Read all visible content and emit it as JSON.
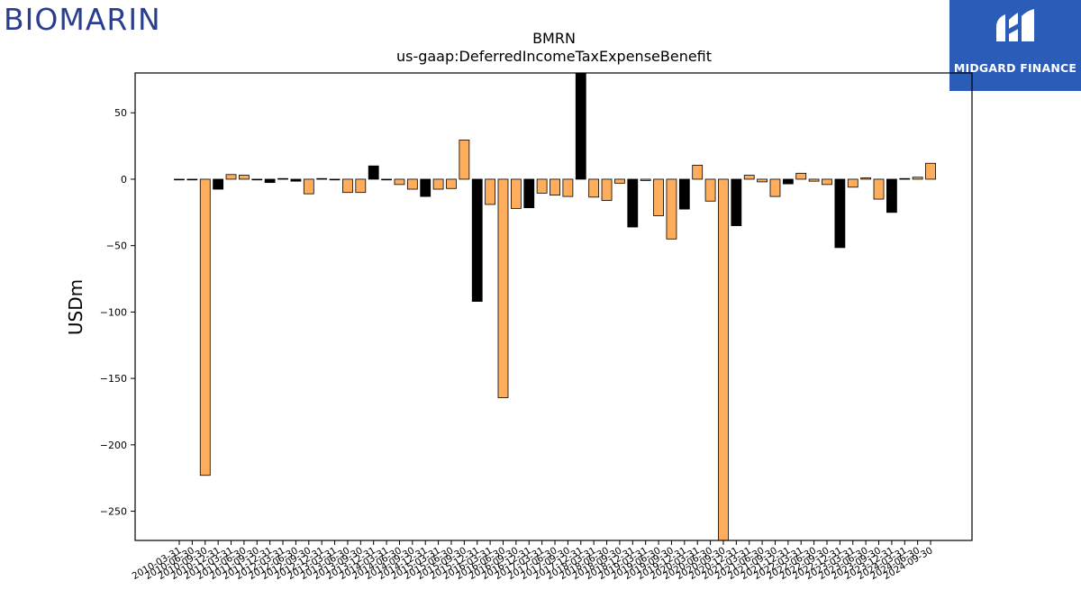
{
  "logos": {
    "left_brand": "BIOMARIN",
    "right_brand": "MIDGARD FINANCE"
  },
  "colors": {
    "bar_a": "#fdad5c",
    "bar_b": "#000000",
    "logo_left": "#2a3e8f",
    "logo_right_bg": "#2b5cb8"
  },
  "chart_data": {
    "type": "bar",
    "title": "BMRN",
    "subtitle": "us-gaap:DeferredIncomeTaxExpenseBenefit",
    "xlabel": "",
    "ylabel": "USDm",
    "ylim": [
      -272,
      80
    ],
    "yticks": [
      50,
      0,
      -50,
      -100,
      -150,
      -200,
      -250
    ],
    "ytick_labels": [
      "50",
      "0",
      "−50",
      "−100",
      "−150",
      "−200",
      "−250"
    ],
    "grid": false,
    "categories": [
      "2010-03-31",
      "2010-06-30",
      "2010-09-30",
      "2010-12-31",
      "2011-03-31",
      "2011-06-30",
      "2011-09-30",
      "2011-12-31",
      "2012-03-31",
      "2012-06-30",
      "2012-09-30",
      "2012-12-31",
      "2013-03-31",
      "2013-06-30",
      "2013-09-30",
      "2013-12-31",
      "2014-03-31",
      "2014-06-30",
      "2014-09-30",
      "2014-12-31",
      "2015-03-31",
      "2015-06-30",
      "2015-09-30",
      "2015-12-31",
      "2016-03-31",
      "2016-06-30",
      "2016-09-30",
      "2016-12-31",
      "2017-03-31",
      "2017-06-30",
      "2017-09-30",
      "2017-12-31",
      "2018-03-31",
      "2018-06-30",
      "2018-09-30",
      "2018-12-31",
      "2019-03-31",
      "2019-06-30",
      "2019-09-30",
      "2019-12-31",
      "2020-03-31",
      "2020-06-30",
      "2020-09-30",
      "2020-12-31",
      "2021-03-31",
      "2021-06-30",
      "2021-09-30",
      "2021-12-31",
      "2022-03-31",
      "2022-06-30",
      "2022-09-30",
      "2022-12-31",
      "2023-03-31",
      "2023-06-30",
      "2023-09-30",
      "2023-12-31",
      "2024-03-31",
      "2024-06-30",
      "2024-09-30"
    ],
    "values": [
      -0.5,
      -0.5,
      -223,
      -7.5,
      3.5,
      3,
      -0.5,
      -2.5,
      0.5,
      -1.5,
      -11,
      0.5,
      -0.5,
      -10,
      -10,
      10,
      -0.5,
      -4,
      -7.5,
      -13,
      -7.5,
      -7,
      29.5,
      -92,
      -19,
      -164.5,
      -22,
      -21.5,
      -10.5,
      -12,
      -13,
      80,
      -13.5,
      -16,
      -3,
      -36,
      -1,
      -27.5,
      -45,
      -22.5,
      10.5,
      -16.5,
      -272,
      -35,
      3,
      -2,
      -13,
      -3.5,
      4.5,
      -1.5,
      -4,
      -51.5,
      -6,
      1,
      -15,
      -25,
      0.5,
      1.5,
      12
    ],
    "bar_colors": [
      "a",
      "a",
      "a",
      "b",
      "a",
      "a",
      "a",
      "b",
      "a",
      "b",
      "a",
      "b",
      "a",
      "a",
      "a",
      "b",
      "a",
      "a",
      "a",
      "b",
      "a",
      "a",
      "a",
      "b",
      "a",
      "a",
      "a",
      "b",
      "a",
      "a",
      "a",
      "b",
      "a",
      "a",
      "a",
      "b",
      "a",
      "a",
      "a",
      "b",
      "a",
      "a",
      "a",
      "b",
      "a",
      "a",
      "a",
      "b",
      "a",
      "a",
      "a",
      "b",
      "a",
      "a",
      "a",
      "b",
      "a",
      "a",
      "a"
    ]
  }
}
